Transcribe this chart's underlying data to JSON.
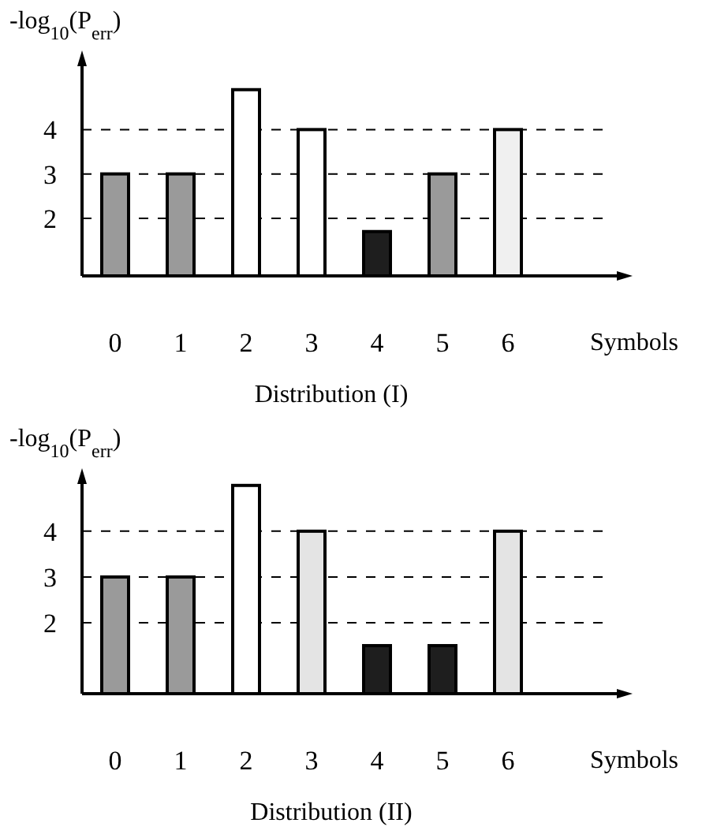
{
  "chart_data": [
    {
      "type": "bar",
      "title": "Distribution (I)",
      "xlabel": "Symbols",
      "ylabel": "-log$_{10}$(P$_{err}$)",
      "categories": [
        "0",
        "1",
        "2",
        "3",
        "4",
        "5",
        "6"
      ],
      "values": [
        3,
        3,
        4.9,
        4,
        1.7,
        3,
        4
      ],
      "colors": [
        "#9a9a9a",
        "#9a9a9a",
        "#ffffff",
        "#ffffff",
        "#1e1e1e",
        "#9a9a9a",
        "#f0f0f0"
      ],
      "ylim": [
        0.7,
        5.5
      ],
      "yticks": [
        2,
        3,
        4
      ],
      "grid": "y"
    },
    {
      "type": "bar",
      "title": "Distribution (II)",
      "xlabel": "Symbols",
      "ylabel": "-log$_{10}$(P$_{err}$)",
      "categories": [
        "0",
        "1",
        "2",
        "3",
        "4",
        "5",
        "6"
      ],
      "values": [
        3,
        3,
        5,
        4,
        1.5,
        1.5,
        4
      ],
      "colors": [
        "#9a9a9a",
        "#9a9a9a",
        "#ffffff",
        "#e4e4e4",
        "#1e1e1e",
        "#1e1e1e",
        "#e4e4e4"
      ],
      "ylim": [
        0.45,
        5.1
      ],
      "yticks": [
        2,
        3,
        4
      ],
      "grid": "y"
    }
  ]
}
